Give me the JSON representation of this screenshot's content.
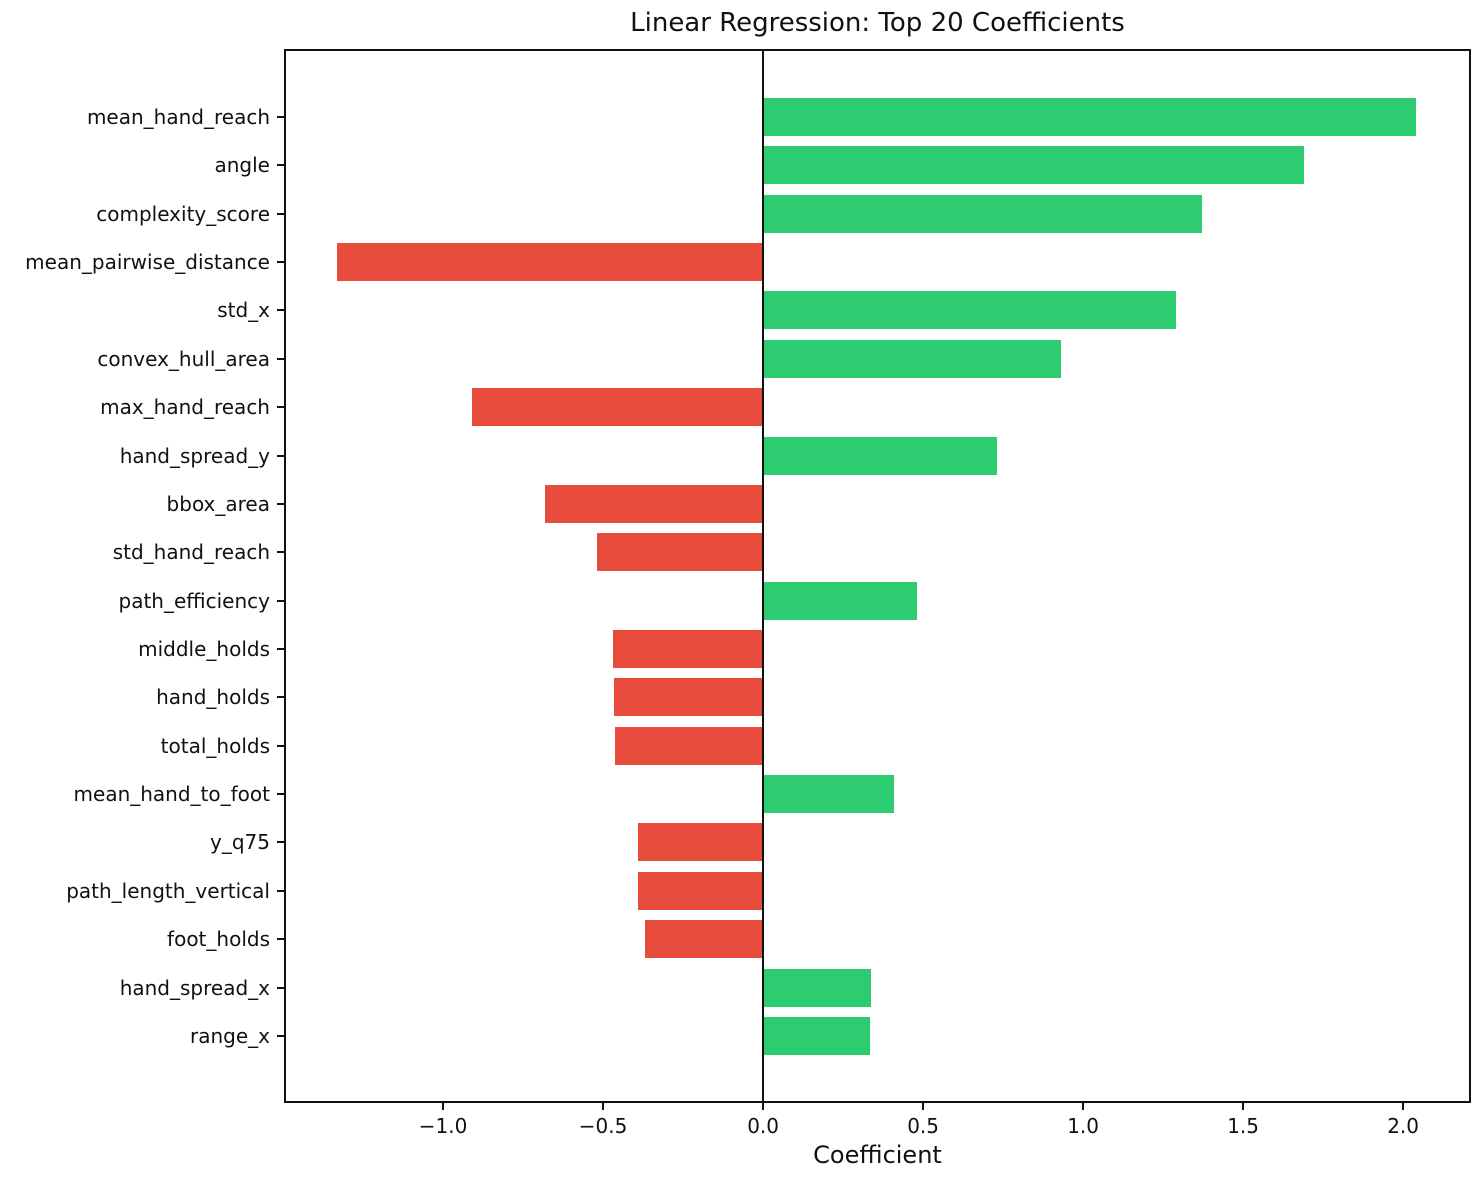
{
  "chart_data": {
    "type": "bar",
    "orientation": "horizontal",
    "title": "Linear Regression: Top 20 Coefficients",
    "xlabel": "Coefficient",
    "ylabel": "",
    "grid": false,
    "legend": null,
    "zero_line": true,
    "xlim": [
      -1.494,
      2.209
    ],
    "x_ticks": [
      {
        "value": -1.0,
        "label": "−1.0"
      },
      {
        "value": -0.5,
        "label": "−0.5"
      },
      {
        "value": 0.0,
        "label": "0.0"
      },
      {
        "value": 0.5,
        "label": "0.5"
      },
      {
        "value": 1.0,
        "label": "1.0"
      },
      {
        "value": 1.5,
        "label": "1.5"
      },
      {
        "value": 2.0,
        "label": "2.0"
      }
    ],
    "categories": [
      "mean_hand_reach",
      "angle",
      "complexity_score",
      "mean_pairwise_distance",
      "std_x",
      "convex_hull_area",
      "max_hand_reach",
      "hand_spread_y",
      "bbox_area",
      "std_hand_reach",
      "path_efficiency",
      "middle_holds",
      "hand_holds",
      "total_holds",
      "mean_hand_to_foot",
      "y_q75",
      "path_length_vertical",
      "foot_holds",
      "hand_spread_x",
      "range_x"
    ],
    "values": [
      2.04,
      1.69,
      1.37,
      -1.33,
      1.29,
      0.93,
      -0.91,
      0.73,
      -0.68,
      -0.52,
      0.48,
      -0.47,
      -0.466,
      -0.462,
      0.41,
      -0.39,
      -0.39,
      -0.37,
      0.338,
      0.334
    ],
    "colors": {
      "positive": "#2ecc71",
      "negative": "#e74c3c",
      "spine": "#111111",
      "text": "#111111"
    }
  }
}
